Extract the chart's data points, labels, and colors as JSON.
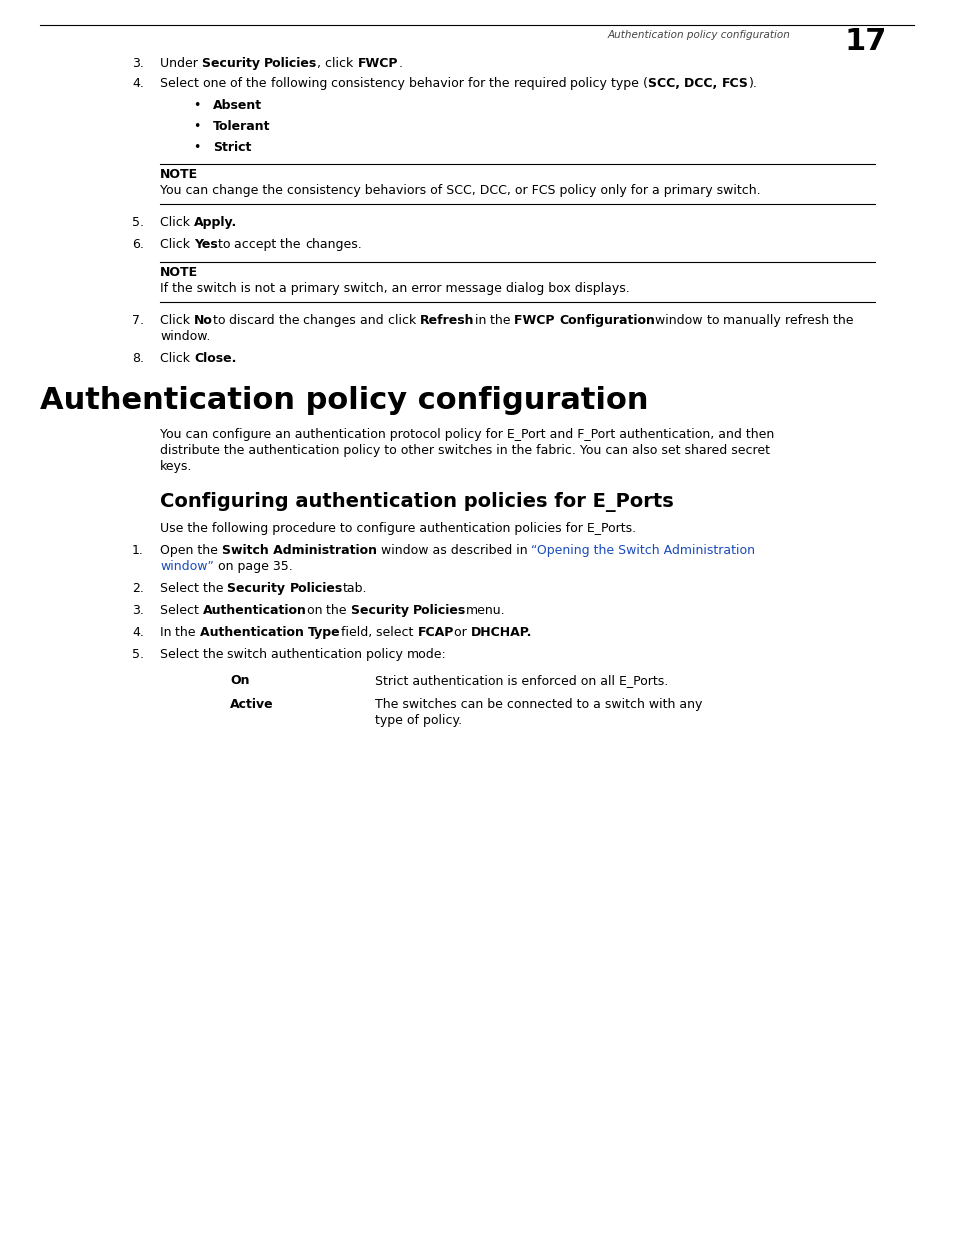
{
  "bg_color": "#ffffff",
  "page_header_text": "Authentication policy configuration",
  "page_number": "17",
  "top_sections": [
    {
      "type": "numbered",
      "num": "3.",
      "parts": [
        {
          "t": "Under ",
          "b": false
        },
        {
          "t": "Security Policies",
          "b": true
        },
        {
          "t": ", click ",
          "b": false
        },
        {
          "t": "FWCP",
          "b": true
        },
        {
          "t": ".",
          "b": false
        }
      ]
    },
    {
      "type": "numbered",
      "num": "4.",
      "parts": [
        {
          "t": "Select one of the following consistency behavior for the required policy type (",
          "b": false
        },
        {
          "t": "SCC, DCC, FCS",
          "b": true
        },
        {
          "t": ").",
          "b": false
        }
      ]
    },
    {
      "type": "bullet",
      "parts": [
        {
          "t": "Absent",
          "b": true
        }
      ]
    },
    {
      "type": "bullet",
      "parts": [
        {
          "t": "Tolerant",
          "b": true
        }
      ]
    },
    {
      "type": "bullet",
      "parts": [
        {
          "t": "Strict",
          "b": true
        }
      ]
    },
    {
      "type": "note",
      "label": "NOTE",
      "text": "You can change the consistency behaviors of SCC, DCC, or FCS policy only for a primary switch."
    },
    {
      "type": "numbered",
      "num": "5.",
      "parts": [
        {
          "t": "Click ",
          "b": false
        },
        {
          "t": "Apply.",
          "b": true
        }
      ]
    },
    {
      "type": "numbered",
      "num": "6.",
      "parts": [
        {
          "t": "Click ",
          "b": false
        },
        {
          "t": "Yes",
          "b": true
        },
        {
          "t": " to accept the changes.",
          "b": false
        }
      ]
    },
    {
      "type": "note",
      "label": "NOTE",
      "text": "If the switch is not a primary switch, an error message dialog box displays."
    },
    {
      "type": "numbered",
      "num": "7.",
      "parts": [
        {
          "t": "Click ",
          "b": false
        },
        {
          "t": "No",
          "b": true
        },
        {
          "t": " to discard the changes and click ",
          "b": false
        },
        {
          "t": "Refresh",
          "b": true
        },
        {
          "t": " in the ",
          "b": false
        },
        {
          "t": "FWCP Configuration",
          "b": true
        },
        {
          "t": " window to manually refresh the window.",
          "b": false
        }
      ]
    },
    {
      "type": "numbered",
      "num": "8.",
      "parts": [
        {
          "t": "Click ",
          "b": false
        },
        {
          "t": "Close.",
          "b": true
        }
      ]
    }
  ],
  "main_heading": "Authentication policy configuration",
  "main_body_lines": [
    "You can configure an authentication protocol policy for E_Port and F_Port authentication, and then",
    "distribute the authentication policy to other switches in the fabric. You can also set shared secret",
    "keys."
  ],
  "sub_heading": "Configuring authentication policies for E_Ports",
  "sub_body": "Use the following procedure to configure authentication policies for E_Ports.",
  "sub_sections": [
    {
      "type": "numbered",
      "num": "1.",
      "parts": [
        {
          "t": "Open the ",
          "b": false,
          "c": "#000000"
        },
        {
          "t": "Switch Administration",
          "b": true,
          "c": "#000000"
        },
        {
          "t": " window as described in ",
          "b": false,
          "c": "#000000"
        },
        {
          "t": "“Opening the Switch Administration",
          "b": false,
          "c": "#1a4bbd"
        },
        {
          "t": "window”",
          "b": false,
          "c": "#1a4bbd"
        },
        {
          "t": " on page 35.",
          "b": false,
          "c": "#000000"
        }
      ],
      "wrap": true
    },
    {
      "type": "numbered",
      "num": "2.",
      "parts": [
        {
          "t": "Select the ",
          "b": false,
          "c": "#000000"
        },
        {
          "t": "Security Policies",
          "b": true,
          "c": "#000000"
        },
        {
          "t": " tab.",
          "b": false,
          "c": "#000000"
        }
      ],
      "wrap": false
    },
    {
      "type": "numbered",
      "num": "3.",
      "parts": [
        {
          "t": "Select ",
          "b": false,
          "c": "#000000"
        },
        {
          "t": "Authentication",
          "b": true,
          "c": "#000000"
        },
        {
          "t": " on the ",
          "b": false,
          "c": "#000000"
        },
        {
          "t": "Security Policies",
          "b": true,
          "c": "#000000"
        },
        {
          "t": " menu.",
          "b": false,
          "c": "#000000"
        }
      ],
      "wrap": false
    },
    {
      "type": "numbered",
      "num": "4.",
      "parts": [
        {
          "t": "In the ",
          "b": false,
          "c": "#000000"
        },
        {
          "t": "Authentication Type",
          "b": true,
          "c": "#000000"
        },
        {
          "t": " field, select ",
          "b": false,
          "c": "#000000"
        },
        {
          "t": "FCAP",
          "b": true,
          "c": "#000000"
        },
        {
          "t": " or ",
          "b": false,
          "c": "#000000"
        },
        {
          "t": "DHCHAP.",
          "b": true,
          "c": "#000000"
        }
      ],
      "wrap": false
    },
    {
      "type": "numbered",
      "num": "5.",
      "parts": [
        {
          "t": "Select the switch authentication policy mode:",
          "b": false,
          "c": "#000000"
        }
      ],
      "wrap": false
    },
    {
      "type": "mode_table",
      "rows": [
        {
          "mode": "On",
          "desc": "Strict authentication is enforced on all E_Ports."
        },
        {
          "mode": "Active",
          "desc": "The switches can be connected to a switch with any\ntype of policy."
        }
      ]
    }
  ]
}
